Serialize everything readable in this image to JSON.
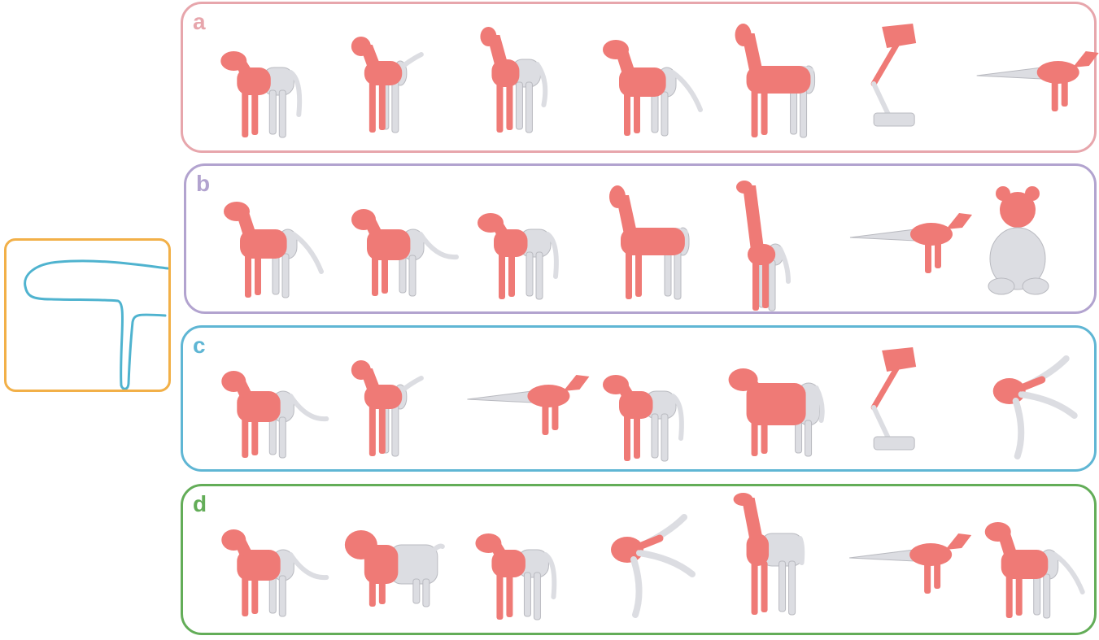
{
  "colors": {
    "highlight": "#ef7a76",
    "body": "#dcdde2",
    "body_shadow": "#b9bac0",
    "query_stroke": "#4fb3cf",
    "query_border": "#f2b048"
  },
  "query": {
    "type": "sketch"
  },
  "panels": [
    {
      "id": "a",
      "label": "a",
      "color": "#e7a6ac",
      "shapes": [
        "cow",
        "dog-thin",
        "horse-rearing",
        "wolf",
        "horse",
        "lamp",
        "dinosaur"
      ]
    },
    {
      "id": "b",
      "label": "b",
      "color": "#b2a3cf",
      "shapes": [
        "wolf",
        "dog",
        "cow",
        "horse",
        "giraffe",
        "dinosaur",
        "teddy-bear"
      ]
    },
    {
      "id": "c",
      "label": "c",
      "color": "#5fb6d4",
      "shapes": [
        "dog",
        "dog-thin",
        "dinosaur",
        "cow",
        "bull",
        "lamp",
        "octopus"
      ]
    },
    {
      "id": "d",
      "label": "d",
      "color": "#63ad58",
      "shapes": [
        "dog",
        "pig",
        "cow",
        "octopus",
        "camel",
        "dinosaur",
        "wolf"
      ]
    }
  ]
}
